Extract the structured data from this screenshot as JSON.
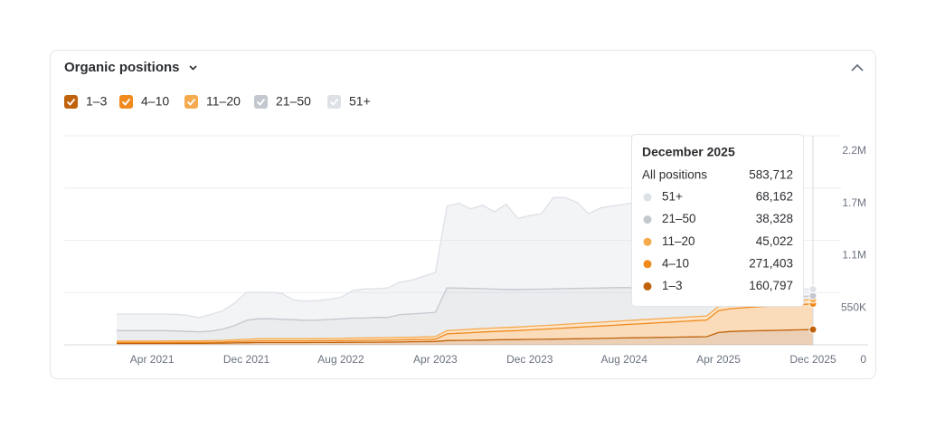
{
  "chart_data": {
    "type": "stacked_area",
    "title": "Organic positions",
    "x": [
      "Jan 2021",
      "Feb 2021",
      "Mar 2021",
      "Apr 2021",
      "May 2021",
      "Jun 2021",
      "Jul 2021",
      "Aug 2021",
      "Sep 2021",
      "Oct 2021",
      "Nov 2021",
      "Dec 2021",
      "Jan 2022",
      "Feb 2022",
      "Mar 2022",
      "Apr 2022",
      "May 2022",
      "Jun 2022",
      "Jul 2022",
      "Aug 2022",
      "Sep 2022",
      "Oct 2022",
      "Nov 2022",
      "Dec 2022",
      "Jan 2023",
      "Feb 2023",
      "Mar 2023",
      "Apr 2023",
      "May 2023",
      "Jun 2023",
      "Jul 2023",
      "Aug 2023",
      "Sep 2023",
      "Oct 2023",
      "Nov 2023",
      "Dec 2023",
      "Jan 2024",
      "Feb 2024",
      "Mar 2024",
      "Apr 2024",
      "May 2024",
      "Jun 2024",
      "Jul 2024",
      "Aug 2024",
      "Sep 2024",
      "Oct 2024",
      "Nov 2024",
      "Dec 2024",
      "Jan 2025",
      "Feb 2025",
      "Mar 2025",
      "Apr 2025",
      "May 2025",
      "Jun 2025",
      "Jul 2025",
      "Aug 2025",
      "Sep 2025",
      "Oct 2025",
      "Nov 2025",
      "Dec 2025"
    ],
    "xticks": [
      3,
      11,
      19,
      27,
      35,
      43,
      51,
      59
    ],
    "series": [
      {
        "name": "1–3",
        "color": "#c0620b",
        "values": [
          15000,
          15000,
          15000,
          15000,
          15000,
          16000,
          16000,
          16000,
          17000,
          18000,
          20000,
          22000,
          24000,
          24000,
          24000,
          24000,
          24000,
          25000,
          25000,
          26000,
          27000,
          28000,
          28000,
          29000,
          30000,
          32000,
          33000,
          35000,
          45000,
          47000,
          48000,
          50000,
          52000,
          54000,
          55000,
          57000,
          58000,
          60000,
          62000,
          64000,
          66000,
          68000,
          70000,
          72000,
          74000,
          76000,
          78000,
          80000,
          82000,
          84000,
          86000,
          130000,
          140000,
          145000,
          148000,
          150000,
          152000,
          155000,
          158000,
          160797
        ]
      },
      {
        "name": "4–10",
        "color": "#f08a1c",
        "values": [
          10000,
          10000,
          10000,
          10000,
          10000,
          10000,
          10000,
          10000,
          11000,
          12000,
          14000,
          16000,
          18000,
          18000,
          18000,
          18000,
          18000,
          18000,
          19000,
          19000,
          20000,
          20000,
          21000,
          21000,
          22000,
          22000,
          23000,
          24000,
          70000,
          75000,
          80000,
          85000,
          88000,
          92000,
          95000,
          100000,
          105000,
          110000,
          115000,
          120000,
          125000,
          130000,
          135000,
          140000,
          145000,
          150000,
          155000,
          160000,
          165000,
          170000,
          175000,
          230000,
          240000,
          245000,
          250000,
          255000,
          258000,
          262000,
          266000,
          271403
        ]
      },
      {
        "name": "11–20",
        "color": "#f6aa4e",
        "values": [
          15000,
          15000,
          15000,
          15000,
          15000,
          15000,
          15000,
          15000,
          16000,
          17000,
          18000,
          20000,
          22000,
          22000,
          22000,
          22000,
          22000,
          22000,
          23000,
          23000,
          24000,
          24000,
          25000,
          25000,
          26000,
          26000,
          27000,
          28000,
          35000,
          35000,
          36000,
          36000,
          37000,
          37000,
          38000,
          38000,
          38000,
          39000,
          39000,
          40000,
          40000,
          40000,
          41000,
          41000,
          41000,
          42000,
          42000,
          42000,
          43000,
          43000,
          43000,
          44000,
          44000,
          44000,
          44000,
          44000,
          44000,
          45000,
          45000,
          45022
        ]
      },
      {
        "name": "21–50",
        "color": "#c3c8cf",
        "values": [
          110000,
          110000,
          110000,
          110000,
          110000,
          105000,
          100000,
          95000,
          100000,
          120000,
          150000,
          200000,
          210000,
          210000,
          205000,
          200000,
          195000,
          195000,
          200000,
          205000,
          210000,
          210000,
          215000,
          215000,
          240000,
          245000,
          250000,
          255000,
          450000,
          440000,
          430000,
          420000,
          410000,
          400000,
          395000,
          390000,
          385000,
          380000,
          375000,
          370000,
          365000,
          360000,
          355000,
          350000,
          340000,
          330000,
          320000,
          310000,
          300000,
          290000,
          280000,
          150000,
          120000,
          90000,
          70000,
          60000,
          50000,
          45000,
          40000,
          38328
        ]
      },
      {
        "name": "51+",
        "color": "#dde0e5",
        "values": [
          174000,
          174000,
          174000,
          174000,
          174000,
          175000,
          169000,
          150000,
          176000,
          193000,
          238000,
          294000,
          278000,
          278000,
          271000,
          206000,
          201000,
          205000,
          213000,
          227000,
          289000,
          308000,
          301000,
          310000,
          342000,
          355000,
          387000,
          418000,
          860000,
          893000,
          836000,
          879000,
          813000,
          897000,
          747000,
          775000,
          794000,
          961000,
          959000,
          906000,
          784000,
          842000,
          859000,
          877000,
          900000,
          922000,
          905000,
          888000,
          860000,
          813000,
          766000,
          746000,
          556000,
          376000,
          238000,
          141000,
          116000,
          93000,
          81000,
          68162
        ]
      }
    ],
    "ylim": [
      0,
      2200000
    ],
    "yticks": [
      0,
      {
        "value": 550000,
        "label": "550K"
      },
      {
        "value": 1100000,
        "label": "1.1M"
      },
      {
        "value": 1650000,
        "label": "1.7M"
      },
      {
        "value": 2200000,
        "label": "2.2M"
      }
    ],
    "grid": true,
    "legend": "top-left",
    "tooltip": {
      "title": "December 2025",
      "total_name": "All positions",
      "total_label": "583,712",
      "value_labels": [
        "160,797",
        "271,403",
        "45,022",
        "38,328",
        "68,162"
      ]
    }
  }
}
